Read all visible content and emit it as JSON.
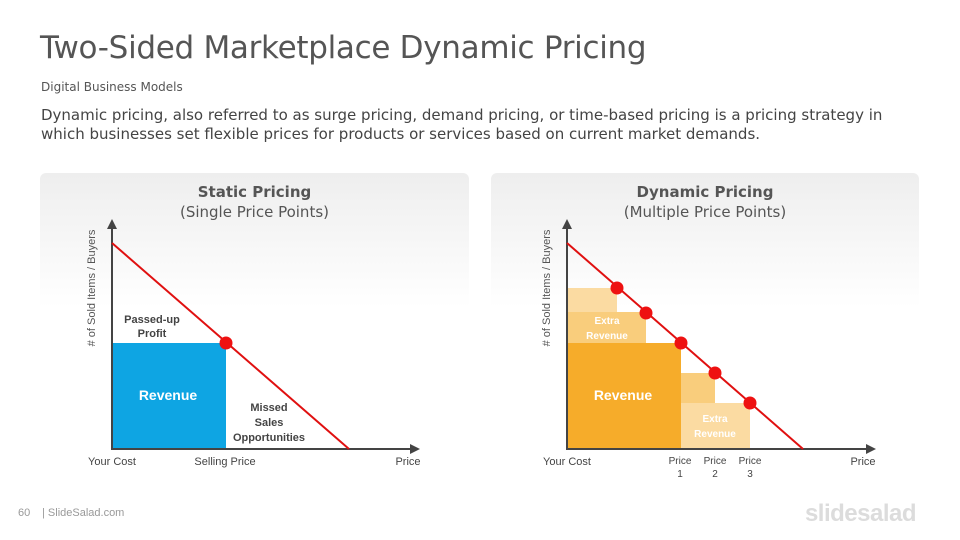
{
  "header": {
    "title": "Two-Sided Marketplace Dynamic Pricing",
    "subtitle": "Digital Business Models",
    "description": "Dynamic pricing, also referred to as surge pricing, demand pricing, or time-based pricing is a pricing strategy in which businesses set flexible prices for products or services based on current market demands."
  },
  "static_panel": {
    "title": "Static Pricing",
    "subtitle": "(Single Price Points)",
    "y_axis_label": "# of Sold Items / Buyers",
    "x_labels": {
      "your_cost": "Your Cost",
      "selling_price": "Selling Price",
      "price": "Price"
    },
    "passed_up_line1": "Passed-up",
    "passed_up_line2": "Profit",
    "revenue": "Revenue",
    "missed_line1": "Missed",
    "missed_line2": "Sales",
    "missed_line3": "Opportunities"
  },
  "dynamic_panel": {
    "title": "Dynamic Pricing",
    "subtitle": "(Multiple Price Points)",
    "y_axis_label": "# of Sold Items / Buyers",
    "x_labels": {
      "your_cost": "Your Cost",
      "price1_line1": "Price",
      "price1_line2": "1",
      "price2_line1": "Price",
      "price2_line2": "2",
      "price3_line1": "Price",
      "price3_line2": "3",
      "price": "Price"
    },
    "extra_line1": "Extra",
    "extra_line2": "Revenue",
    "revenue": "Revenue"
  },
  "colors": {
    "revenue_blue": "#0ea5e3",
    "revenue_orange": "#f6ac2a",
    "extra_light": "#fbdba2",
    "extra_mid": "#f9cd7c",
    "demand_line": "#e01010",
    "dot": "#ee1111"
  },
  "footer": {
    "page_number": "60",
    "site": "| SlideSalad.com",
    "brand": "slidesalad"
  }
}
